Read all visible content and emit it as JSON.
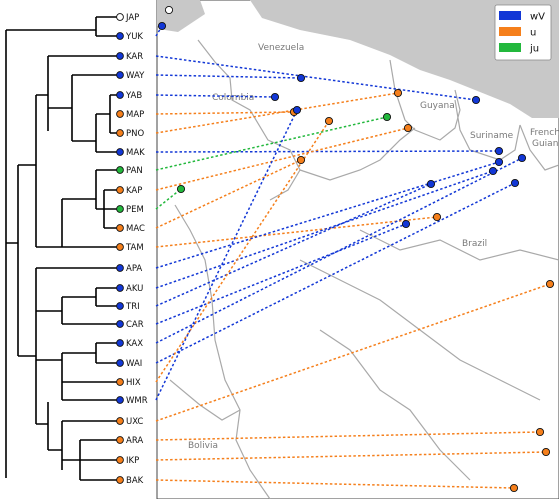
{
  "colors": {
    "wV": "#1237d6",
    "u": "#f57f1b",
    "ju": "#22b83c",
    "unassigned": "#ffffff"
  },
  "legend": [
    {
      "key": "wV",
      "label": "wV"
    },
    {
      "key": "u",
      "label": "u"
    },
    {
      "key": "ju",
      "label": "ju"
    }
  ],
  "map_labels": {
    "venezuela": "Venezuela",
    "colombia": "Colombia",
    "guyana": "Guyana",
    "suriname": "Suriname",
    "french_guiana_1": "French",
    "french_guiana_2": "Guiana",
    "brazil": "Brazil",
    "bolivia": "Bolivia"
  },
  "leaves": [
    {
      "label": "JAP",
      "group": "unassigned"
    },
    {
      "label": "YUK",
      "group": "wV"
    },
    {
      "label": "KAR",
      "group": "wV"
    },
    {
      "label": "WAY",
      "group": "wV"
    },
    {
      "label": "YAB",
      "group": "wV"
    },
    {
      "label": "MAP",
      "group": "u"
    },
    {
      "label": "PNO",
      "group": "u"
    },
    {
      "label": "MAK",
      "group": "wV"
    },
    {
      "label": "PAN",
      "group": "ju"
    },
    {
      "label": "KAP",
      "group": "u"
    },
    {
      "label": "PEM",
      "group": "ju"
    },
    {
      "label": "MAC",
      "group": "u"
    },
    {
      "label": "TAM",
      "group": "u"
    },
    {
      "label": "APA",
      "group": "wV"
    },
    {
      "label": "AKU",
      "group": "wV"
    },
    {
      "label": "TRI",
      "group": "wV"
    },
    {
      "label": "CAR",
      "group": "wV"
    },
    {
      "label": "KAX",
      "group": "wV"
    },
    {
      "label": "WAI",
      "group": "wV"
    },
    {
      "label": "HIX",
      "group": "u"
    },
    {
      "label": "WMR",
      "group": "wV"
    },
    {
      "label": "UXC",
      "group": "u"
    },
    {
      "label": "ARA",
      "group": "u"
    },
    {
      "label": "IKP",
      "group": "u"
    },
    {
      "label": "BAK",
      "group": "u"
    }
  ]
}
